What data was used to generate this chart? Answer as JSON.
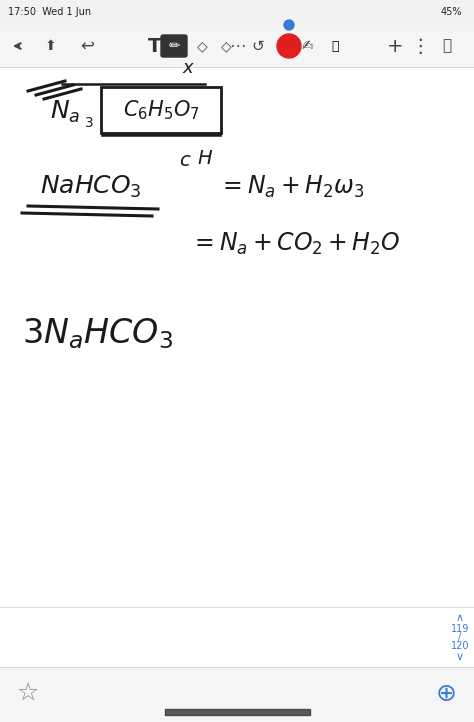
{
  "bg_color": "#ffffff",
  "status_bar": "17:50  Wed 1 Jun",
  "status_right": "45%",
  "page_num_top": "119",
  "page_num_bot": "120",
  "text_color": "#1a1a1a",
  "blue_color": "#3a7bd5",
  "fig_width": 4.74,
  "fig_height": 7.22
}
